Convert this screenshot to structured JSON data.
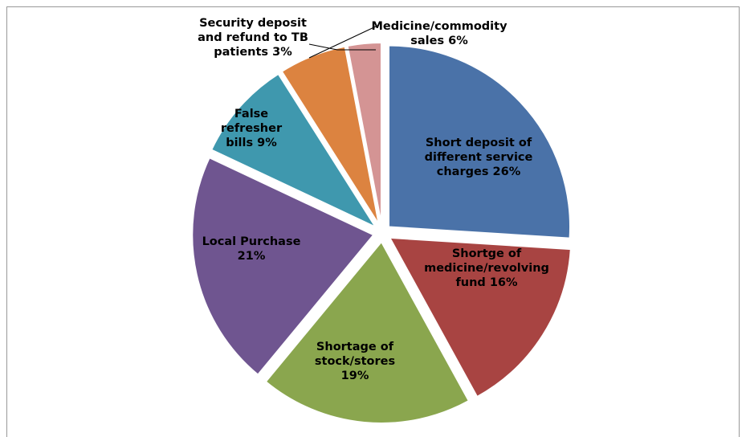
{
  "chart_data": {
    "type": "pie",
    "categories": [
      "Short deposit of different service charges",
      "Shortge of medicine/revolving fund",
      "Shortage of stock/stores",
      "Local Purchase",
      "False refresher bills",
      "Medicine/commodity sales",
      "Security deposit and refund to TB patients"
    ],
    "values": [
      26,
      16,
      19,
      21,
      9,
      6,
      3
    ],
    "value_labels": [
      "26%",
      "16%",
      "19%",
      "21%",
      "9%",
      "6%",
      "3%"
    ],
    "colors": [
      "#4a72a8",
      "#a84442",
      "#8aa64e",
      "#6f5590",
      "#3f98ae",
      "#dc8340",
      "#d49494"
    ]
  }
}
